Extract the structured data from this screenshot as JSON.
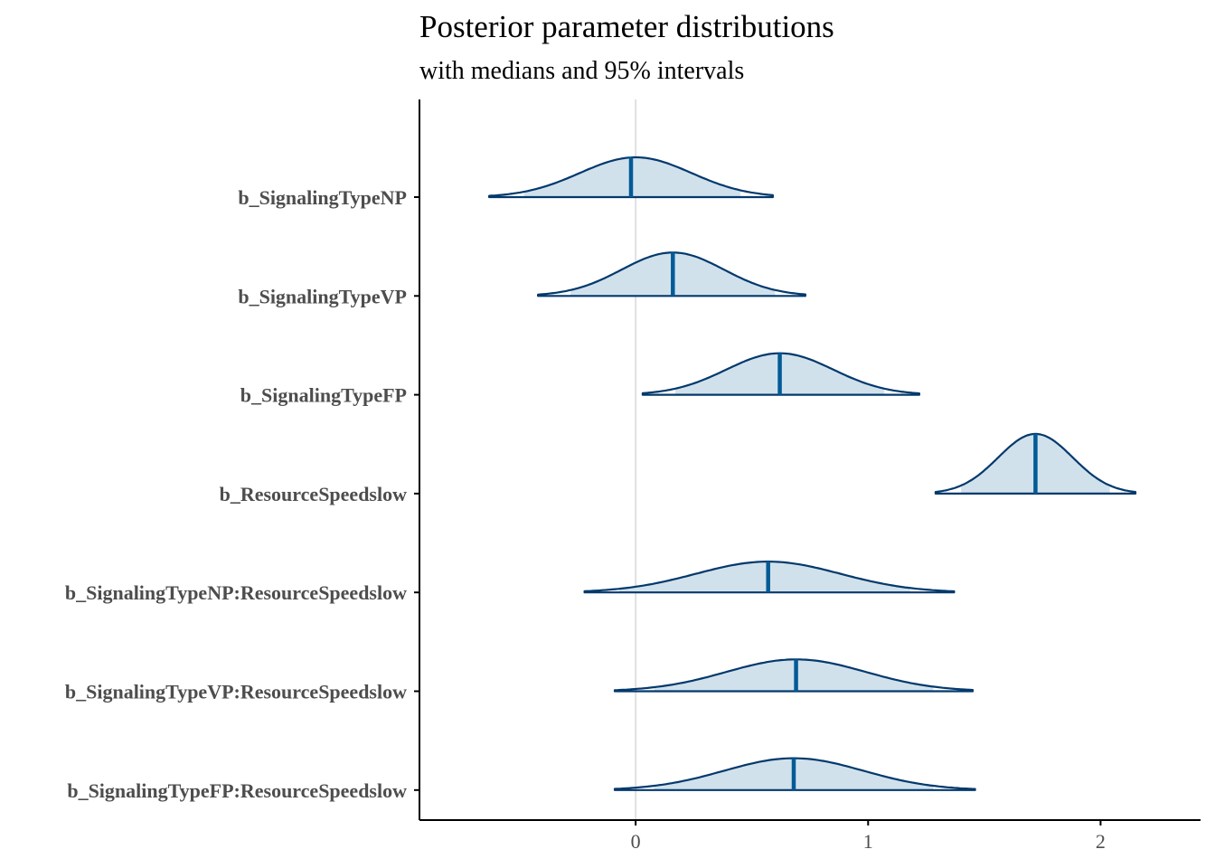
{
  "chart_data": {
    "type": "density-ridges",
    "title": "Posterior parameter distributions",
    "subtitle": "with medians and 95% intervals",
    "xlabel": "",
    "ylabel": "",
    "xlim": [
      -0.93,
      2.43
    ],
    "x_ticks": [
      0,
      1,
      2
    ],
    "x_tick_labels": [
      "0",
      "1",
      "2"
    ],
    "reference_line_x": 0,
    "colors": {
      "fill": "#d1e1ec",
      "outline": "#03396c",
      "median": "#005b96",
      "reference": "#e0e0e0"
    },
    "parameters": [
      {
        "name": "b_SignalingTypeNP",
        "median": -0.02,
        "ci95": [
          -0.48,
          0.45
        ],
        "range": [
          -0.63,
          0.59
        ],
        "mean": 0.0,
        "sd": 0.24
      },
      {
        "name": "b_SignalingTypeVP",
        "median": 0.16,
        "ci95": [
          -0.28,
          0.6
        ],
        "range": [
          -0.42,
          0.73
        ],
        "mean": 0.16,
        "sd": 0.22
      },
      {
        "name": "b_SignalingTypeFP",
        "median": 0.62,
        "ci95": [
          0.17,
          1.07
        ],
        "range": [
          0.03,
          1.22
        ],
        "mean": 0.62,
        "sd": 0.23
      },
      {
        "name": "b_ResourceSpeedslow",
        "median": 1.72,
        "ci95": [
          1.4,
          2.04
        ],
        "range": [
          1.29,
          2.15
        ],
        "mean": 1.72,
        "sd": 0.16
      },
      {
        "name": "b_SignalingTypeNP:ResourceSpeedslow",
        "median": 0.57,
        "ci95": [
          -0.07,
          1.18
        ],
        "range": [
          -0.22,
          1.37
        ],
        "mean": 0.57,
        "sd": 0.31
      },
      {
        "name": "b_SignalingTypeVP:ResourceSpeedslow",
        "median": 0.69,
        "ci95": [
          0.08,
          1.28
        ],
        "range": [
          -0.09,
          1.45
        ],
        "mean": 0.69,
        "sd": 0.3
      },
      {
        "name": "b_SignalingTypeFP:ResourceSpeedslow",
        "median": 0.68,
        "ci95": [
          0.08,
          1.28
        ],
        "range": [
          -0.09,
          1.46
        ],
        "mean": 0.68,
        "sd": 0.3
      }
    ]
  }
}
